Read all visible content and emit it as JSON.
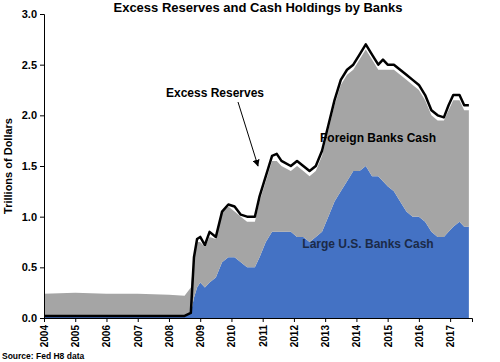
{
  "chart_data": {
    "type": "area",
    "title": "Excess Reserves and Cash Holdings by Banks",
    "ylabel": "Trillions of Dollars",
    "source": "Source: Fed H8 data",
    "stacked": true,
    "x": [
      2004,
      2005,
      2006,
      2007,
      2008,
      2008.5,
      2008.7,
      2008.8,
      2008.9,
      2009,
      2009.15,
      2009.3,
      2009.5,
      2009.7,
      2009.9,
      2010.1,
      2010.3,
      2010.5,
      2010.75,
      2010.9,
      2011.1,
      2011.3,
      2011.45,
      2011.6,
      2011.9,
      2012.1,
      2012.3,
      2012.5,
      2012.7,
      2012.9,
      2013.1,
      2013.3,
      2013.5,
      2013.7,
      2013.9,
      2014.1,
      2014.3,
      2014.5,
      2014.7,
      2014.85,
      2015,
      2015.2,
      2015.4,
      2015.6,
      2015.8,
      2016,
      2016.2,
      2016.4,
      2016.6,
      2016.8,
      2016.95,
      2017.1,
      2017.3,
      2017.45,
      2017.6
    ],
    "xlim": [
      2004,
      2017.7
    ],
    "xticks": [
      2004,
      2005,
      2006,
      2007,
      2008,
      2009,
      2010,
      2011,
      2012,
      2013,
      2014,
      2015,
      2016,
      2017
    ],
    "ylim": [
      0,
      3
    ],
    "yticks": [
      {
        "value": 0,
        "label": "0.0"
      },
      0.5,
      {
        "value": 1,
        "label": "1.0"
      },
      1.5,
      {
        "value": 2,
        "label": "2.0"
      },
      2.5,
      {
        "value": 3,
        "label": "3.0"
      }
    ],
    "series": [
      {
        "name": "Large U.S. Banks Cash",
        "type": "area",
        "color": "#4472c4",
        "values": [
          0.02,
          0.02,
          0.02,
          0.02,
          0.02,
          0.02,
          0.05,
          0.2,
          0.3,
          0.35,
          0.3,
          0.35,
          0.4,
          0.55,
          0.6,
          0.6,
          0.55,
          0.5,
          0.5,
          0.6,
          0.75,
          0.85,
          0.85,
          0.85,
          0.85,
          0.8,
          0.8,
          0.75,
          0.8,
          0.85,
          1.0,
          1.15,
          1.25,
          1.35,
          1.45,
          1.45,
          1.5,
          1.4,
          1.4,
          1.35,
          1.3,
          1.25,
          1.15,
          1.05,
          1.0,
          1.0,
          0.95,
          0.85,
          0.8,
          0.8,
          0.85,
          0.9,
          0.95,
          0.9,
          0.9
        ]
      },
      {
        "name": "Foreign Banks Cash",
        "type": "area",
        "color": "#a5a5a5",
        "values": [
          0.22,
          0.23,
          0.22,
          0.22,
          0.21,
          0.2,
          0.25,
          0.4,
          0.45,
          0.4,
          0.4,
          0.45,
          0.38,
          0.5,
          0.5,
          0.45,
          0.45,
          0.45,
          0.45,
          0.55,
          0.6,
          0.7,
          0.7,
          0.65,
          0.6,
          0.7,
          0.65,
          0.65,
          0.65,
          0.75,
          0.85,
          0.95,
          1.05,
          1.05,
          1.0,
          1.1,
          1.15,
          1.15,
          1.05,
          1.1,
          1.15,
          1.2,
          1.25,
          1.3,
          1.3,
          1.25,
          1.2,
          1.15,
          1.15,
          1.15,
          1.2,
          1.25,
          1.2,
          1.15,
          1.15
        ]
      },
      {
        "name": "Excess Reserves",
        "type": "line",
        "color": "#000000",
        "values": [
          0.02,
          0.02,
          0.02,
          0.02,
          0.02,
          0.02,
          0.05,
          0.6,
          0.78,
          0.8,
          0.72,
          0.85,
          0.8,
          1.05,
          1.12,
          1.1,
          1.02,
          1.0,
          1.0,
          1.2,
          1.4,
          1.6,
          1.62,
          1.55,
          1.5,
          1.55,
          1.5,
          1.45,
          1.5,
          1.65,
          1.9,
          2.15,
          2.35,
          2.45,
          2.5,
          2.6,
          2.7,
          2.6,
          2.5,
          2.55,
          2.5,
          2.5,
          2.45,
          2.4,
          2.35,
          2.3,
          2.2,
          2.05,
          2.0,
          1.98,
          2.1,
          2.2,
          2.2,
          2.1,
          2.1
        ]
      }
    ]
  }
}
